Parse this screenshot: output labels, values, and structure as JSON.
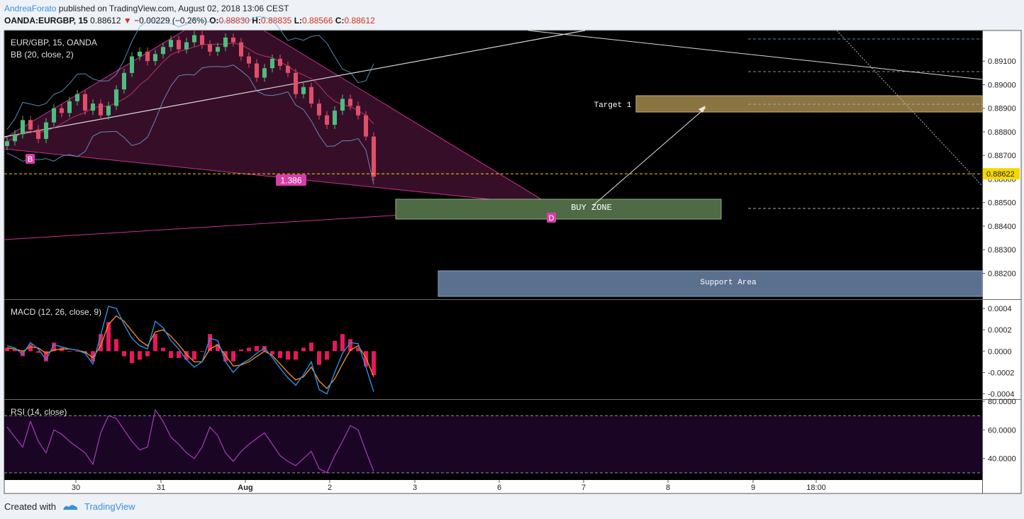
{
  "header": {
    "author": "AndreaForato",
    "published": "published on TradingView.com, August 02, 2018 13:06 CEST",
    "symbol": "OANDA:EURGBP, 15",
    "last": "0.88612",
    "arrow": "▼",
    "change": "−0.00229 (−0.26%)",
    "o_label": "O:",
    "o": "0.88830",
    "h_label": "H:",
    "h": "0.88835",
    "l_label": "L:",
    "l": "0.88566",
    "c_label": "C:",
    "c": "0.88612"
  },
  "footer": {
    "created_with": "Created with",
    "brand": "TradingView"
  },
  "colors": {
    "background": "#000000",
    "pattern_fill": "#3d0f2c",
    "pattern_line": "#c2338f",
    "buy_zone": "#4f6b45",
    "target_zone": "#8a7442",
    "support_zone": "#5b6f8f",
    "macd_line": "#2f8fe0",
    "signal_line": "#f08a24",
    "histogram": "#e8175d",
    "rsi_line": "#a63fb5",
    "price_marker": "#f5d800"
  },
  "chart_data": [
    {
      "type": "line",
      "title": "EUR/GBP, 15, OANDA",
      "indicator": "BB (20, close, 2)",
      "x_ticks": [
        "30",
        "31",
        "Aug",
        "2",
        "3",
        "6",
        "7",
        "8",
        "9",
        "18:00"
      ],
      "y_ticks": [
        "0.89100",
        "0.89000",
        "0.88900",
        "0.88800",
        "0.88700",
        "0.88600",
        "0.88500",
        "0.88400",
        "0.88300",
        "0.88200"
      ],
      "ylim": [
        0.8809,
        0.8923
      ],
      "current_price": 0.88622,
      "current_price_label": "0.88622",
      "close": [
        0.8876,
        0.8879,
        0.8885,
        0.8881,
        0.8877,
        0.8884,
        0.889,
        0.8888,
        0.8893,
        0.8896,
        0.8889,
        0.8892,
        0.8887,
        0.8891,
        0.8898,
        0.8905,
        0.8912,
        0.8914,
        0.891,
        0.8913,
        0.8916,
        0.8919,
        0.8915,
        0.8918,
        0.8921,
        0.8917,
        0.8914,
        0.8916,
        0.892,
        0.8918,
        0.8912,
        0.8909,
        0.8903,
        0.8907,
        0.8911,
        0.8908,
        0.8905,
        0.8896,
        0.8899,
        0.8892,
        0.8887,
        0.8883,
        0.8889,
        0.8894,
        0.8891,
        0.8887,
        0.8878,
        0.8861
      ],
      "annotations": {
        "pattern_label_b": "B",
        "pattern_label_d": "D",
        "fib_label": "1.386",
        "buy_zone": "BUY ZONE",
        "target_1": "Target 1",
        "support_area": "Support Area"
      }
    },
    {
      "type": "line",
      "title": "MACD (12, 26, close, 9)",
      "y_ticks": [
        "0.0004",
        "0.0002",
        "0.0000",
        "-0.0002",
        "-0.0004"
      ],
      "ylim": [
        -0.00045,
        0.00048
      ],
      "macd": [
        5e-05,
        3e-05,
        -3e-05,
        8e-05,
        2e-05,
        -8e-05,
        6e-05,
        4e-05,
        2e-05,
        1e-05,
        -2e-05,
        -0.00012,
        0.00015,
        0.00042,
        0.0004,
        0.00025,
        0.00012,
        5e-05,
        2e-05,
        0.00028,
        0.00022,
        0.0001,
        2e-05,
        -8e-05,
        -0.00015,
        -0.0001,
        0.00012,
        0.0001,
        -0.0001,
        -0.0002,
        -0.00012,
        -8e-05,
        -2e-05,
        3e-05,
        -6e-05,
        -0.00016,
        -0.00025,
        -0.00032,
        -0.00022,
        -0.0001,
        -0.00036,
        -0.0004,
        -0.0002,
        -2e-05,
        8e-05,
        7e-05,
        -0.00015,
        -0.00038
      ],
      "signal": [
        3e-05,
        2e-05,
        0.0,
        4e-05,
        3e-05,
        -2e-05,
        1e-05,
        2e-05,
        2e-05,
        1e-05,
        -1e-05,
        -6e-05,
        5e-05,
        0.00025,
        0.00033,
        0.00028,
        0.00019,
        0.0001,
        5e-05,
        0.00018,
        0.0002,
        0.00014,
        6e-05,
        -3e-05,
        -0.0001,
        -0.0001,
        2e-05,
        6e-05,
        -4e-05,
        -0.00014,
        -0.00013,
        -0.0001,
        -5e-05,
        0.0,
        -4e-05,
        -0.00012,
        -0.0002,
        -0.00027,
        -0.00024,
        -0.00015,
        -0.00028,
        -0.00035,
        -0.00026,
        -0.00012,
        1e-05,
        5e-05,
        -6e-05,
        -0.00024
      ]
    },
    {
      "type": "line",
      "title": "RSI (14, close)",
      "y_ticks": [
        "80.0000",
        "60.0000",
        "40.0000"
      ],
      "ylim": [
        25,
        81
      ],
      "band": [
        30,
        70
      ],
      "rsi": [
        62,
        55,
        48,
        66,
        52,
        44,
        60,
        57,
        52,
        48,
        44,
        36,
        58,
        70,
        68,
        60,
        52,
        46,
        48,
        74,
        66,
        55,
        50,
        44,
        40,
        48,
        62,
        56,
        44,
        38,
        45,
        50,
        54,
        58,
        50,
        42,
        38,
        35,
        40,
        45,
        33,
        30,
        42,
        52,
        63,
        60,
        45,
        31
      ]
    }
  ]
}
